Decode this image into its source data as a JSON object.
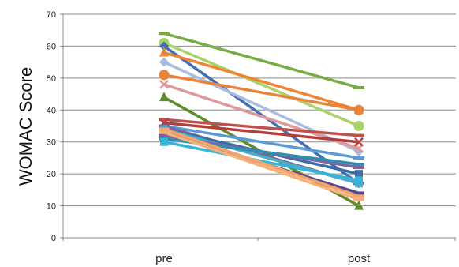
{
  "chart_data": {
    "type": "line",
    "title": "",
    "xlabel": "",
    "ylabel": "WOMAC Score",
    "categories": [
      "pre",
      "post"
    ],
    "ylim": [
      0,
      70
    ],
    "yticks": [
      0,
      10,
      20,
      30,
      40,
      50,
      60,
      70
    ],
    "grid": true,
    "legend": "none",
    "series": [
      {
        "values": [
          64,
          47
        ],
        "color": "#77ab43",
        "marker": "line"
      },
      {
        "values": [
          61,
          35
        ],
        "color": "#a9d26b",
        "marker": "circle"
      },
      {
        "values": [
          60,
          17
        ],
        "color": "#4470b3",
        "marker": "diamond"
      },
      {
        "values": [
          58,
          40
        ],
        "color": "#ef8533",
        "marker": "triangle"
      },
      {
        "values": [
          55,
          27
        ],
        "color": "#a9bde0",
        "marker": "diamond"
      },
      {
        "values": [
          51,
          40
        ],
        "color": "#e8833b",
        "marker": "circle"
      },
      {
        "values": [
          48,
          28
        ],
        "color": "#de9a9a",
        "marker": "x"
      },
      {
        "values": [
          44,
          10
        ],
        "color": "#5e8b2c",
        "marker": "triangle"
      },
      {
        "values": [
          37,
          32
        ],
        "color": "#c0504d",
        "marker": "line"
      },
      {
        "values": [
          36,
          30
        ],
        "color": "#b33f3c",
        "marker": "x"
      },
      {
        "values": [
          35,
          25
        ],
        "color": "#5b9bd5",
        "marker": "line"
      },
      {
        "values": [
          35,
          17
        ],
        "color": "#7f64a3",
        "marker": "line"
      },
      {
        "values": [
          34,
          20
        ],
        "color": "#3c6ea8",
        "marker": "square"
      },
      {
        "values": [
          34,
          17
        ],
        "color": "#4bacc6",
        "marker": "square"
      },
      {
        "values": [
          33,
          14
        ],
        "color": "#5a4a8a",
        "marker": "line"
      },
      {
        "values": [
          32,
          22
        ],
        "color": "#8064a2",
        "marker": "line"
      },
      {
        "values": [
          31,
          23
        ],
        "color": "#2e8fb0",
        "marker": "line"
      },
      {
        "values": [
          30,
          18
        ],
        "color": "#37b4d8",
        "marker": "square"
      },
      {
        "values": [
          34,
          13
        ],
        "color": "#f5a46a",
        "marker": "line"
      },
      {
        "values": [
          33,
          12
        ],
        "color": "#f7b07a",
        "marker": "line"
      }
    ]
  }
}
